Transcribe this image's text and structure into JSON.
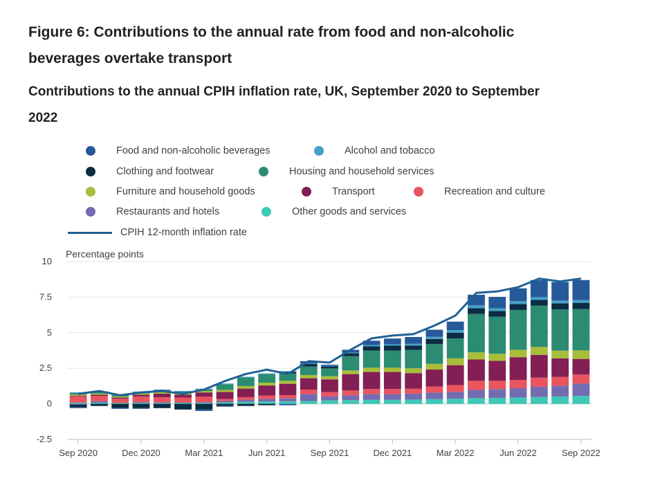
{
  "figure_title": "Figure 6: Contributions to the annual rate from food and non-alcoholic beverages overtake transport",
  "chart_data": {
    "type": "bar",
    "stacked": true,
    "title": "Contributions to the annual CPIH inflation rate, UK, September 2020 to September 2022",
    "ylabel": "Percentage points",
    "xlabel": "",
    "ylim": [
      -2.5,
      10
    ],
    "yticks": [
      "10",
      "7.5",
      "5",
      "2.5",
      "0",
      "-2.5"
    ],
    "ytick_values": [
      10,
      7.5,
      5,
      2.5,
      0,
      -2.5
    ],
    "xtick_labels": [
      "Sep 2020",
      "Dec 2020",
      "Mar 2021",
      "Jun 2021",
      "Sep 2021",
      "Dec 2021",
      "Mar 2022",
      "Jun 2022",
      "Sep 2022"
    ],
    "xtick_indices": [
      0,
      3,
      6,
      9,
      12,
      15,
      18,
      21,
      24
    ],
    "grid": true,
    "legend_position": "top",
    "categories": [
      "Sep 2020",
      "Oct 2020",
      "Nov 2020",
      "Dec 2020",
      "Jan 2021",
      "Feb 2021",
      "Mar 2021",
      "Apr 2021",
      "May 2021",
      "Jun 2021",
      "Jul 2021",
      "Aug 2021",
      "Sep 2021",
      "Oct 2021",
      "Nov 2021",
      "Dec 2021",
      "Jan 2022",
      "Feb 2022",
      "Mar 2022",
      "Apr 2022",
      "May 2022",
      "Jun 2022",
      "Jul 2022",
      "Aug 2022",
      "Sep 2022"
    ],
    "series": [
      {
        "name": "Other goods and services",
        "color": "#3ec9b6",
        "values": [
          0.08,
          0.08,
          0.06,
          0.06,
          0.06,
          0.06,
          0.06,
          0.1,
          0.14,
          0.16,
          0.17,
          0.2,
          0.24,
          0.26,
          0.28,
          0.28,
          0.3,
          0.33,
          0.36,
          0.4,
          0.42,
          0.44,
          0.48,
          0.52,
          0.56
        ]
      },
      {
        "name": "Restaurants and hotels",
        "color": "#746cb1",
        "values": [
          -0.05,
          0.1,
          0.0,
          0.06,
          0.04,
          0.04,
          0.06,
          0.1,
          0.15,
          0.18,
          0.22,
          0.48,
          0.28,
          0.34,
          0.4,
          0.4,
          0.42,
          0.46,
          0.48,
          0.58,
          0.62,
          0.66,
          0.72,
          0.76,
          0.86
        ]
      },
      {
        "name": "Recreation and culture",
        "color": "#e9545f",
        "values": [
          0.45,
          0.38,
          0.3,
          0.4,
          0.36,
          0.34,
          0.38,
          0.14,
          0.18,
          0.25,
          0.22,
          0.32,
          0.3,
          0.34,
          0.36,
          0.36,
          0.34,
          0.42,
          0.48,
          0.64,
          0.58,
          0.58,
          0.64,
          0.62,
          0.64
        ]
      },
      {
        "name": "Transport",
        "color": "#831f54",
        "values": [
          0.05,
          0.08,
          0.08,
          0.12,
          0.25,
          0.2,
          0.3,
          0.5,
          0.6,
          0.7,
          0.8,
          0.8,
          0.9,
          1.15,
          1.2,
          1.2,
          1.1,
          1.2,
          1.4,
          1.5,
          1.4,
          1.6,
          1.6,
          1.3,
          1.1
        ]
      },
      {
        "name": "Furniture and household goods",
        "color": "#a8bd3a",
        "values": [
          0.08,
          0.08,
          0.08,
          0.08,
          0.12,
          0.12,
          0.1,
          0.14,
          0.18,
          0.2,
          0.22,
          0.22,
          0.22,
          0.26,
          0.3,
          0.3,
          0.34,
          0.4,
          0.48,
          0.5,
          0.5,
          0.52,
          0.56,
          0.54,
          0.6
        ]
      },
      {
        "name": "Housing and household services",
        "color": "#2b8c72",
        "values": [
          0.1,
          0.1,
          0.1,
          0.1,
          0.1,
          0.1,
          0.12,
          0.4,
          0.6,
          0.6,
          0.5,
          0.6,
          0.55,
          1.0,
          1.2,
          1.2,
          1.3,
          1.4,
          1.4,
          2.7,
          2.6,
          2.8,
          2.9,
          2.9,
          2.9
        ]
      },
      {
        "name": "Clothing and footwear",
        "color": "#0b2c43",
        "values": [
          -0.2,
          -0.15,
          -0.3,
          -0.3,
          -0.3,
          -0.4,
          -0.4,
          -0.15,
          -0.15,
          -0.1,
          0.12,
          0.18,
          0.14,
          0.2,
          0.3,
          0.35,
          0.3,
          0.35,
          0.4,
          0.4,
          0.4,
          0.42,
          0.4,
          0.42,
          0.44
        ]
      },
      {
        "name": "Alcohol and tobacco",
        "color": "#45a0c7",
        "values": [
          0.05,
          0.05,
          0.05,
          0.05,
          0.05,
          0.05,
          0.05,
          0.05,
          0.05,
          0.05,
          0.05,
          0.05,
          0.05,
          0.05,
          0.1,
          0.1,
          0.12,
          0.15,
          0.18,
          0.2,
          0.2,
          0.2,
          0.2,
          0.2,
          0.2
        ]
      },
      {
        "name": "Food and non-alcoholic beverages",
        "color": "#26599a",
        "values": [
          -0.05,
          0.01,
          -0.05,
          -0.05,
          0.02,
          0.0,
          -0.1,
          -0.05,
          0.0,
          0.0,
          -0.1,
          0.15,
          0.07,
          0.2,
          0.3,
          0.4,
          0.48,
          0.5,
          0.6,
          0.75,
          0.8,
          0.9,
          1.2,
          1.3,
          1.4
        ]
      }
    ],
    "line_series": {
      "name": "CPIH 12-month inflation rate",
      "color": "#206095",
      "values": [
        0.7,
        0.9,
        0.6,
        0.8,
        0.9,
        0.7,
        1.0,
        1.6,
        2.1,
        2.4,
        2.1,
        3.0,
        2.9,
        3.8,
        4.6,
        4.8,
        4.9,
        5.5,
        6.2,
        7.8,
        7.9,
        8.2,
        8.8,
        8.6,
        8.8
      ]
    }
  },
  "legend": [
    {
      "label": "Food and non-alcoholic beverages",
      "color": "#26599a",
      "kind": "dot"
    },
    {
      "label": "Alcohol and tobacco",
      "color": "#45a0c7",
      "kind": "dot"
    },
    {
      "label": "Clothing and footwear",
      "color": "#0b2c43",
      "kind": "dot"
    },
    {
      "label": "Housing and household services",
      "color": "#2b8c72",
      "kind": "dot"
    },
    {
      "label": "Furniture and household goods",
      "color": "#a8bd3a",
      "kind": "dot"
    },
    {
      "label": "Transport",
      "color": "#831f54",
      "kind": "dot"
    },
    {
      "label": "Recreation and culture",
      "color": "#e9545f",
      "kind": "dot"
    },
    {
      "label": "Restaurants and hotels",
      "color": "#746cb1",
      "kind": "dot"
    },
    {
      "label": "Other goods and services",
      "color": "#3ec9b6",
      "kind": "dot"
    },
    {
      "label": "CPIH 12-month inflation rate",
      "color": "#206095",
      "kind": "line"
    }
  ]
}
